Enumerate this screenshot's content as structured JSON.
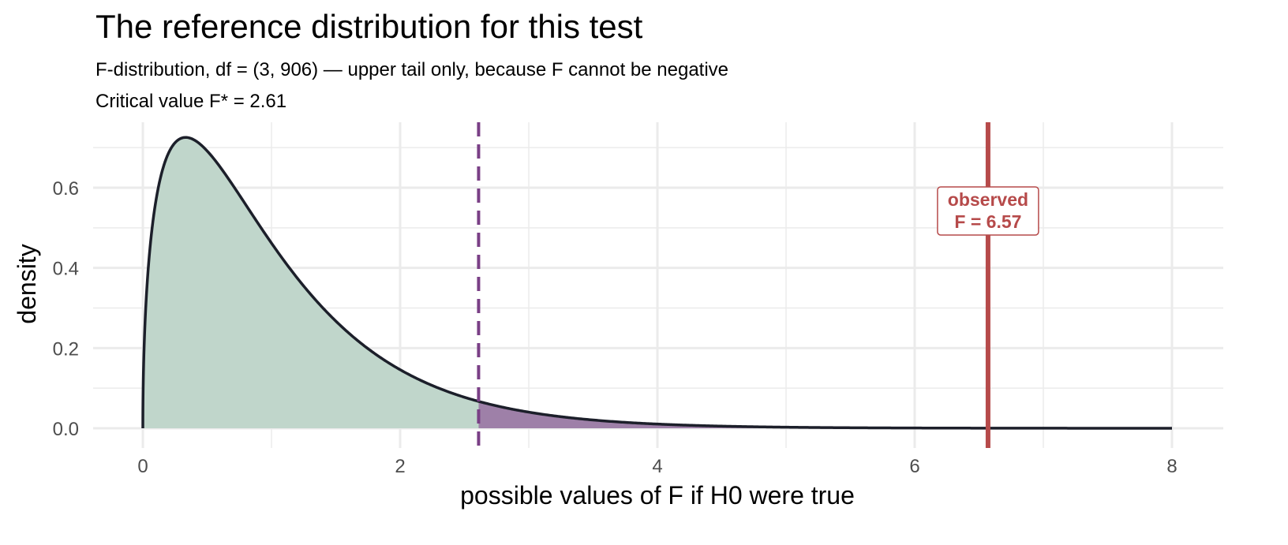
{
  "chart_data": {
    "type": "area",
    "title": "The reference distribution for this test",
    "subtitle": "F-distribution, df = (3, 906) — upper tail only, because F cannot be negative",
    "caption": "Critical value F* = 2.61",
    "xlabel": "possible values of F if H0 were true",
    "ylabel": "density",
    "xlim": [
      0,
      8
    ],
    "ylim": [
      0,
      0.72
    ],
    "x_ticks": [
      0,
      2,
      4,
      6,
      8
    ],
    "y_ticks": [
      0.0,
      0.2,
      0.4,
      0.6
    ],
    "x_tick_labels": [
      "0",
      "2",
      "4",
      "6",
      "8"
    ],
    "y_tick_labels": [
      "0.0",
      "0.2",
      "0.4",
      "0.6"
    ],
    "grid": true,
    "distribution": {
      "family": "F",
      "df1": 3,
      "df2": 906
    },
    "series": [
      {
        "x": [
          0,
          0.05,
          0.1,
          0.2,
          0.3,
          0.4,
          0.5,
          0.6,
          0.8,
          1.0,
          1.2,
          1.4,
          1.6,
          1.8,
          2.0,
          2.2,
          2.4,
          2.61,
          2.8,
          3.0,
          3.5,
          4.0,
          4.5,
          5.0,
          6.0,
          7.0,
          8.0
        ],
        "y": [
          0.0,
          0.47,
          0.61,
          0.7,
          0.72,
          0.71,
          0.69,
          0.65,
          0.56,
          0.46,
          0.37,
          0.29,
          0.22,
          0.17,
          0.13,
          0.1,
          0.08,
          0.06,
          0.05,
          0.04,
          0.02,
          0.01,
          0.005,
          0.003,
          0.001,
          0.0,
          0.0
        ]
      }
    ],
    "critical_value": 2.61,
    "observed_value": 6.57,
    "annotation": {
      "line1": "observed",
      "line2": "F = 6.57"
    },
    "colors": {
      "curve": "#1c1f2a",
      "acceptance_fill": "#c0d6cb",
      "rejection_fill": "#9e80a8",
      "critical_line": "#7a3f86",
      "observed": "#b64a4a",
      "grid": "#ebebeb"
    }
  }
}
